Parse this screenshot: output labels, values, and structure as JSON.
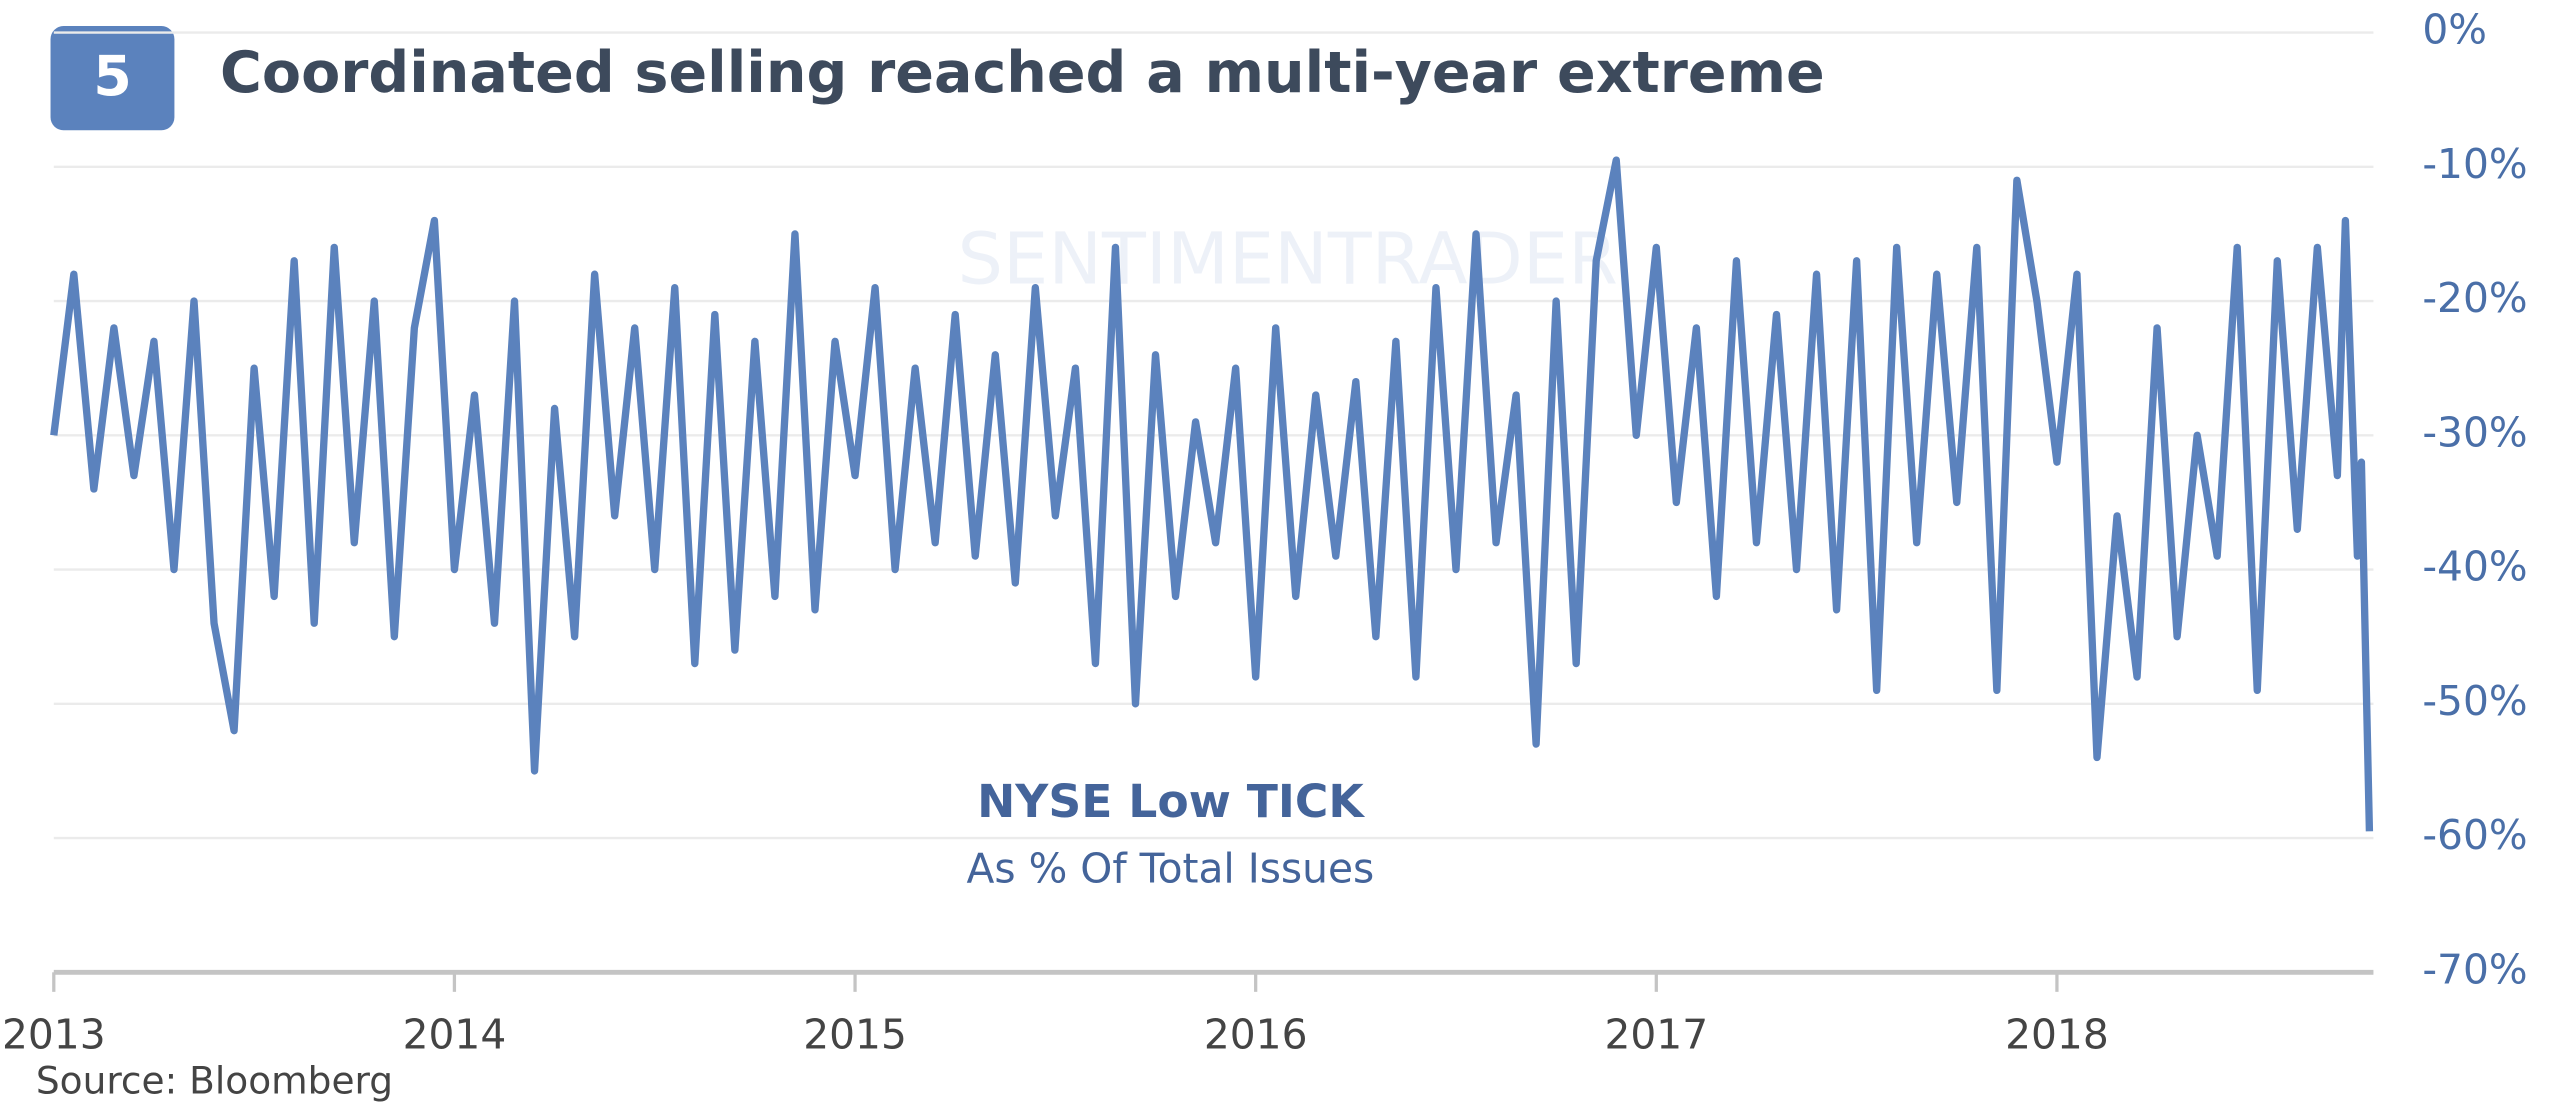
{
  "chart_data": {
    "type": "line",
    "badge": "5",
    "title": "Coordinated selling reached a multi-year extreme",
    "annotation_title": "NYSE Low TICK",
    "annotation_subtitle": "As % Of Total Issues",
    "source": "Source: Bloomberg",
    "watermark": "SENTIMENTRADER",
    "color": "#5b82bd",
    "grid": true,
    "xlim": [
      2013,
      2018.79
    ],
    "xticks": [
      {
        "value": 2013,
        "label": "2013"
      },
      2014,
      2015,
      2016,
      2017,
      2018
    ],
    "ylim": [
      -70,
      0
    ],
    "yticks": [
      {
        "value": 0,
        "label": "0%"
      },
      {
        "value": -10,
        "label": "-10%"
      },
      {
        "value": -20,
        "label": "-20%"
      },
      {
        "value": -30,
        "label": "-30%"
      },
      {
        "value": -40,
        "label": "-40%"
      },
      {
        "value": -50,
        "label": "-50%"
      },
      {
        "value": -60,
        "label": "-60%"
      },
      {
        "value": -70,
        "label": "-70%"
      }
    ],
    "x": [
      2013.0,
      2013.05,
      2013.1,
      2013.15,
      2013.2,
      2013.25,
      2013.3,
      2013.35,
      2013.4,
      2013.45,
      2013.5,
      2013.55,
      2013.6,
      2013.65,
      2013.7,
      2013.75,
      2013.8,
      2013.85,
      2013.9,
      2013.95,
      2014.0,
      2014.05,
      2014.1,
      2014.15,
      2014.2,
      2014.25,
      2014.3,
      2014.35,
      2014.4,
      2014.45,
      2014.5,
      2014.55,
      2014.6,
      2014.65,
      2014.7,
      2014.75,
      2014.8,
      2014.85,
      2014.9,
      2014.95,
      2015.0,
      2015.05,
      2015.1,
      2015.15,
      2015.2,
      2015.25,
      2015.3,
      2015.35,
      2015.4,
      2015.45,
      2015.5,
      2015.55,
      2015.6,
      2015.65,
      2015.7,
      2015.75,
      2015.8,
      2015.85,
      2015.9,
      2015.95,
      2016.0,
      2016.05,
      2016.1,
      2016.15,
      2016.2,
      2016.25,
      2016.3,
      2016.35,
      2016.4,
      2016.45,
      2016.5,
      2016.55,
      2016.6,
      2016.65,
      2016.7,
      2016.75,
      2016.8,
      2016.85,
      2016.9,
      2016.95,
      2017.0,
      2017.05,
      2017.1,
      2017.15,
      2017.2,
      2017.25,
      2017.3,
      2017.35,
      2017.4,
      2017.45,
      2017.5,
      2017.55,
      2017.6,
      2017.65,
      2017.7,
      2017.75,
      2017.8,
      2017.85,
      2017.9,
      2017.95,
      2018.0,
      2018.05,
      2018.1,
      2018.15,
      2018.2,
      2018.25,
      2018.3,
      2018.35,
      2018.4,
      2018.45,
      2018.5,
      2018.55,
      2018.6,
      2018.65,
      2018.7,
      2018.72,
      2018.75,
      2018.76,
      2018.78
    ],
    "values": [
      -30,
      -18,
      -34,
      -22,
      -33,
      -23,
      -40,
      -20,
      -44,
      -52,
      -25,
      -42,
      -17,
      -44,
      -16,
      -38,
      -20,
      -45,
      -22,
      -14,
      -40,
      -27,
      -44,
      -20,
      -55,
      -28,
      -45,
      -18,
      -36,
      -22,
      -40,
      -19,
      -47,
      -21,
      -46,
      -23,
      -42,
      -15,
      -43,
      -23,
      -33,
      -19,
      -40,
      -25,
      -38,
      -21,
      -39,
      -24,
      -41,
      -19,
      -36,
      -25,
      -47,
      -16,
      -50,
      -24,
      -42,
      -29,
      -38,
      -25,
      -48,
      -22,
      -42,
      -27,
      -39,
      -26,
      -45,
      -23,
      -48,
      -19,
      -40,
      -15,
      -38,
      -27,
      -53,
      -20,
      -47,
      -17,
      -9.5,
      -30,
      -16,
      -35,
      -22,
      -42,
      -17,
      -38,
      -21,
      -40,
      -18,
      -43,
      -17,
      -49,
      -16,
      -38,
      -18,
      -35,
      -16,
      -49,
      -11,
      -20,
      -32,
      -18,
      -54,
      -36,
      -48,
      -22,
      -45,
      -30,
      -39,
      -16,
      -49,
      -17,
      -37,
      -16,
      -33,
      -14,
      -39,
      -32,
      -59.5
    ]
  }
}
